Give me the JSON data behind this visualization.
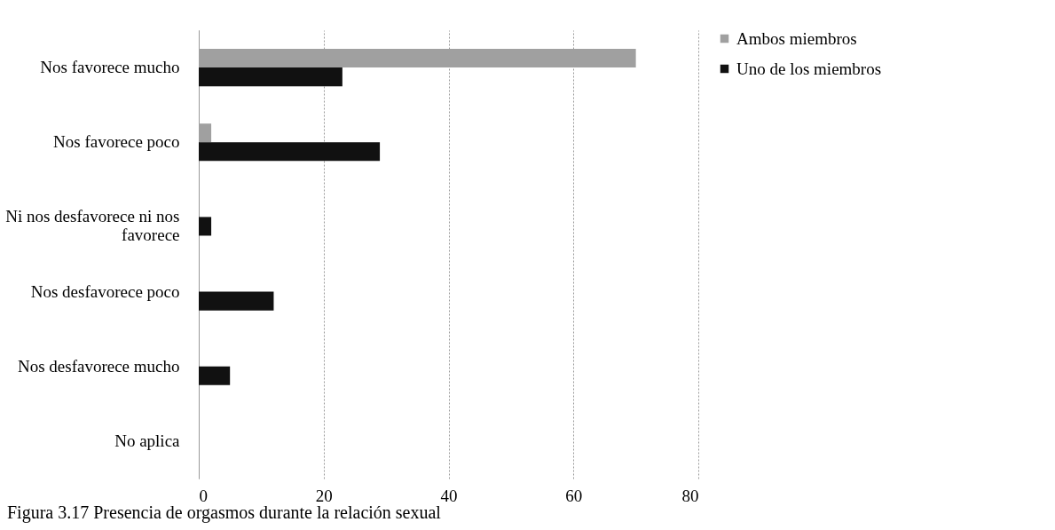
{
  "chart_data": {
    "type": "bar",
    "orientation": "horizontal",
    "categories": [
      "Nos favorece mucho",
      "Nos favorece poco",
      "Ni nos desfavorece ni nos favorece",
      "Nos desfavorece poco",
      "Nos desfavorece mucho",
      "No aplica"
    ],
    "series": [
      {
        "name": "Ambos miembros",
        "color": "#a0a0a0",
        "values": [
          70,
          2,
          0,
          0,
          0,
          0
        ]
      },
      {
        "name": "Uno de los miembros",
        "color": "#111111",
        "values": [
          23,
          29,
          2,
          12,
          5,
          0
        ]
      }
    ],
    "xlim": [
      0,
      80
    ],
    "xticks": [
      0,
      20,
      40,
      60,
      80
    ],
    "grid": "x",
    "legend": "right",
    "annotations": [
      "Figura 3.17 Presencia de orgasmos durante la relación sexual"
    ]
  }
}
